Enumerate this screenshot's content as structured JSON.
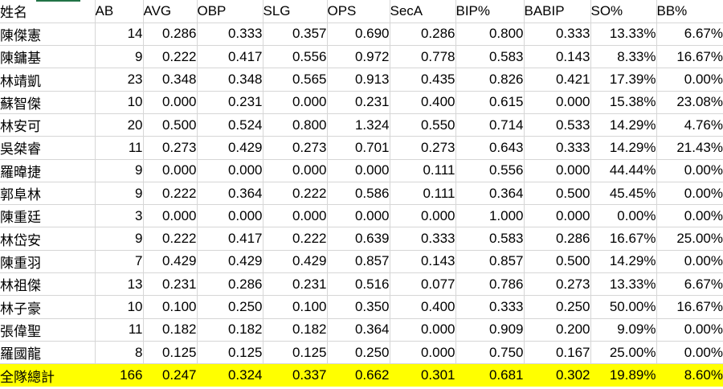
{
  "colors": {
    "total_row_bg": "#ffff00",
    "gridline": "#d6d6d6",
    "selection_green": "#217346",
    "text": "#000000"
  },
  "table": {
    "columns": [
      {
        "key": "name",
        "label": "姓名"
      },
      {
        "key": "ab",
        "label": "AB"
      },
      {
        "key": "avg",
        "label": "AVG"
      },
      {
        "key": "obp",
        "label": "OBP"
      },
      {
        "key": "slg",
        "label": "SLG"
      },
      {
        "key": "ops",
        "label": "OPS"
      },
      {
        "key": "seca",
        "label": "SecA"
      },
      {
        "key": "bip-pct",
        "label": "BIP%"
      },
      {
        "key": "babip",
        "label": "BABIP"
      },
      {
        "key": "so-pct",
        "label": "SO%"
      },
      {
        "key": "bb-pct",
        "label": "BB%"
      }
    ],
    "rows": [
      [
        "陳傑憲",
        "14",
        "0.286",
        "0.333",
        "0.357",
        "0.690",
        "0.286",
        "0.800",
        "0.333",
        "13.33%",
        "6.67%"
      ],
      [
        "陳鏞基",
        "9",
        "0.222",
        "0.417",
        "0.556",
        "0.972",
        "0.778",
        "0.583",
        "0.143",
        "8.33%",
        "16.67%"
      ],
      [
        "林靖凱",
        "23",
        "0.348",
        "0.348",
        "0.565",
        "0.913",
        "0.435",
        "0.826",
        "0.421",
        "17.39%",
        "0.00%"
      ],
      [
        "蘇智傑",
        "10",
        "0.000",
        "0.231",
        "0.000",
        "0.231",
        "0.400",
        "0.615",
        "0.000",
        "15.38%",
        "23.08%"
      ],
      [
        "林安可",
        "20",
        "0.500",
        "0.524",
        "0.800",
        "1.324",
        "0.550",
        "0.714",
        "0.533",
        "14.29%",
        "4.76%"
      ],
      [
        "吳桀睿",
        "11",
        "0.273",
        "0.429",
        "0.273",
        "0.701",
        "0.273",
        "0.643",
        "0.333",
        "14.29%",
        "21.43%"
      ],
      [
        "羅暐捷",
        "9",
        "0.000",
        "0.000",
        "0.000",
        "0.000",
        "0.111",
        "0.556",
        "0.000",
        "44.44%",
        "0.00%"
      ],
      [
        "郭阜林",
        "9",
        "0.222",
        "0.364",
        "0.222",
        "0.586",
        "0.111",
        "0.364",
        "0.500",
        "45.45%",
        "0.00%"
      ],
      [
        "陳重廷",
        "3",
        "0.000",
        "0.000",
        "0.000",
        "0.000",
        "0.000",
        "1.000",
        "0.000",
        "0.00%",
        "0.00%"
      ],
      [
        "林岱安",
        "9",
        "0.222",
        "0.417",
        "0.222",
        "0.639",
        "0.333",
        "0.583",
        "0.286",
        "16.67%",
        "25.00%"
      ],
      [
        "陳重羽",
        "7",
        "0.429",
        "0.429",
        "0.429",
        "0.857",
        "0.143",
        "0.857",
        "0.500",
        "14.29%",
        "0.00%"
      ],
      [
        "林祖傑",
        "13",
        "0.231",
        "0.286",
        "0.231",
        "0.516",
        "0.077",
        "0.786",
        "0.273",
        "13.33%",
        "6.67%"
      ],
      [
        "林子豪",
        "10",
        "0.100",
        "0.250",
        "0.100",
        "0.350",
        "0.400",
        "0.333",
        "0.250",
        "50.00%",
        "16.67%"
      ],
      [
        "張偉聖",
        "11",
        "0.182",
        "0.182",
        "0.182",
        "0.364",
        "0.000",
        "0.909",
        "0.200",
        "9.09%",
        "0.00%"
      ],
      [
        "羅國龍",
        "8",
        "0.125",
        "0.125",
        "0.125",
        "0.250",
        "0.000",
        "0.750",
        "0.167",
        "25.00%",
        "0.00%"
      ]
    ],
    "total": [
      "全隊總計",
      "166",
      "0.247",
      "0.324",
      "0.337",
      "0.662",
      "0.301",
      "0.681",
      "0.302",
      "19.89%",
      "8.60%"
    ]
  }
}
